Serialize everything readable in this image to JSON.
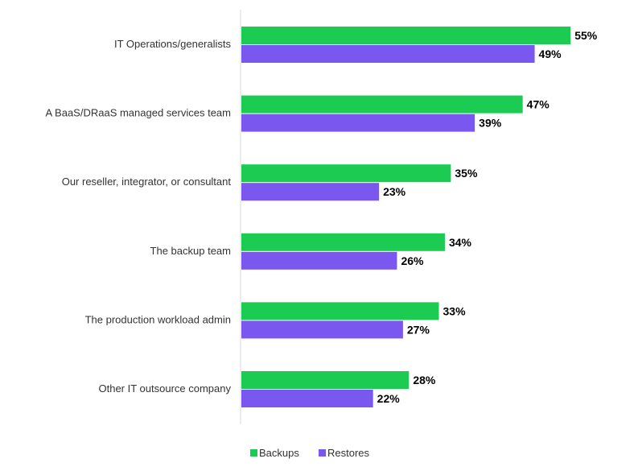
{
  "chart_data": {
    "type": "bar",
    "orientation": "horizontal",
    "title": "",
    "xlabel": "",
    "ylabel": "",
    "xlim": [
      0,
      60
    ],
    "grid": false,
    "legend_position": "bottom",
    "categories": [
      "IT Operations/generalists",
      "A BaaS/DRaaS managed services team",
      "Our reseller, integrator, or consultant",
      "The backup team",
      "The production workload admin",
      "Other IT outsource company"
    ],
    "series": [
      {
        "name": "Backups",
        "color": "#1ccb52",
        "values": [
          55,
          47,
          35,
          34,
          33,
          28
        ]
      },
      {
        "name": "Restores",
        "color": "#7a57ee",
        "values": [
          49,
          39,
          23,
          26,
          27,
          22
        ]
      }
    ],
    "value_suffix": "%"
  }
}
